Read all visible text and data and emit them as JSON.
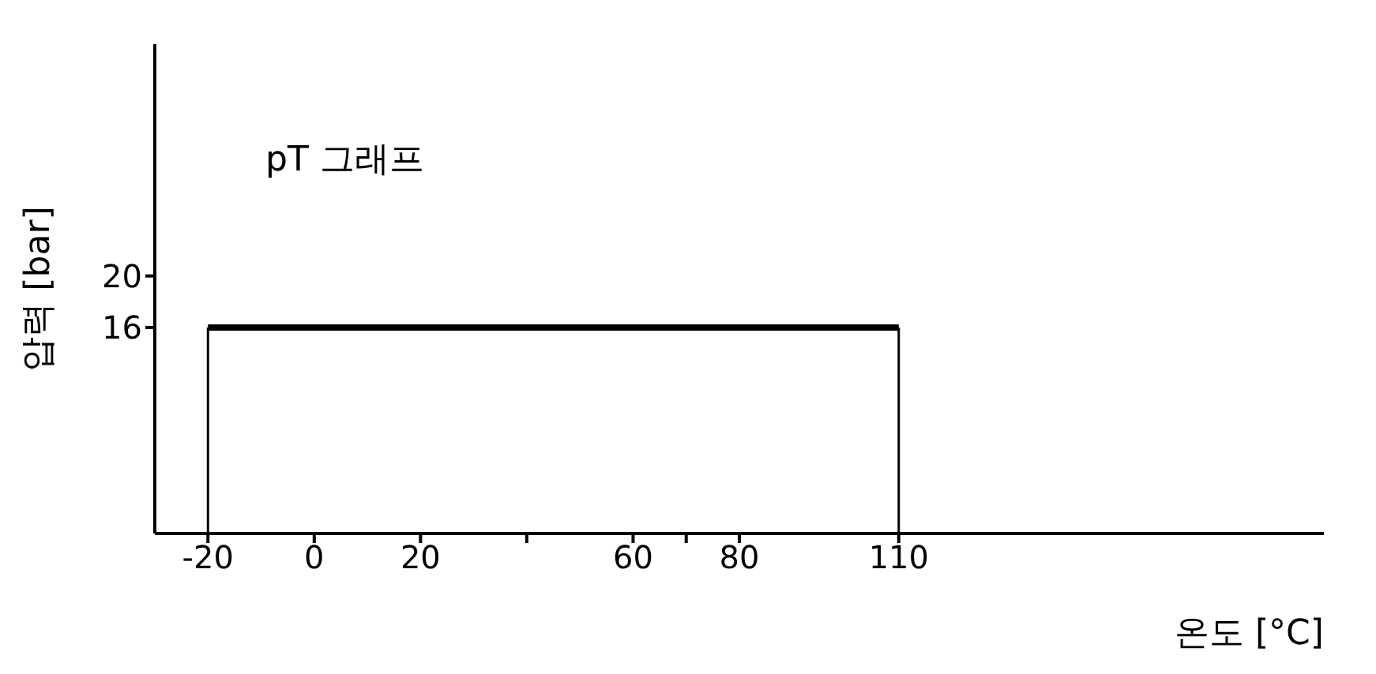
{
  "chart_data": {
    "type": "line",
    "title": "pT 그래프",
    "xlabel": "온도 [°C]",
    "ylabel": "압력 [bar]",
    "x": [
      -20,
      110
    ],
    "series": [
      {
        "color": "#000000",
        "values": [
          16,
          16
        ]
      }
    ],
    "ref_lines": [
      {
        "axis": "x",
        "value": -20,
        "color": "#000000"
      },
      {
        "axis": "x",
        "value": 110,
        "color": "#000000"
      }
    ],
    "xlim": [
      -30,
      190
    ],
    "xticks": [
      -20,
      0,
      20,
      {
        "value": 40,
        "label": null
      },
      60,
      {
        "value": 70,
        "label": null
      },
      80,
      110
    ],
    "ylim": [
      0,
      38
    ],
    "yticks": [
      16,
      20
    ],
    "grid": false,
    "legend": false,
    "marker": "none",
    "line_style": "solid"
  }
}
